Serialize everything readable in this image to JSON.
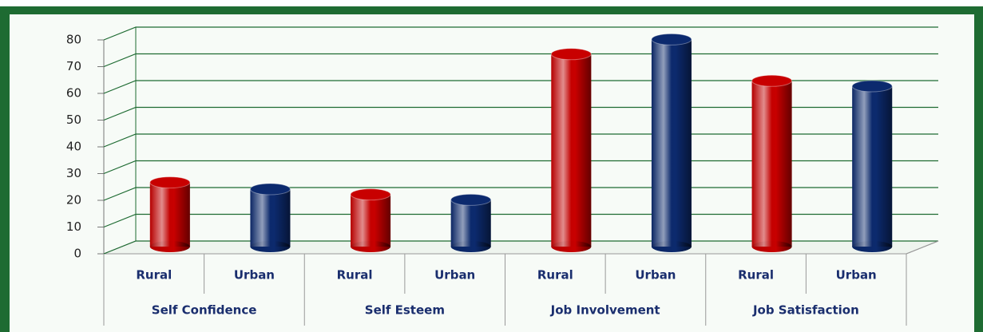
{
  "chart_data": {
    "type": "bar",
    "groups": [
      "Self Confidence",
      "Self Esteem",
      "Job Involvement",
      "Job Satisfaction"
    ],
    "series": [
      {
        "name": "Rural",
        "color": "#c80000",
        "values": [
          24,
          19.5,
          72,
          62
        ]
      },
      {
        "name": "Urban",
        "color": "#0c2a6e",
        "values": [
          21.5,
          17.5,
          77.5,
          60
        ]
      }
    ],
    "ylim": [
      0,
      80
    ],
    "yticks": [
      0,
      10,
      20,
      30,
      40,
      50,
      60,
      70,
      80
    ],
    "grid": true
  }
}
